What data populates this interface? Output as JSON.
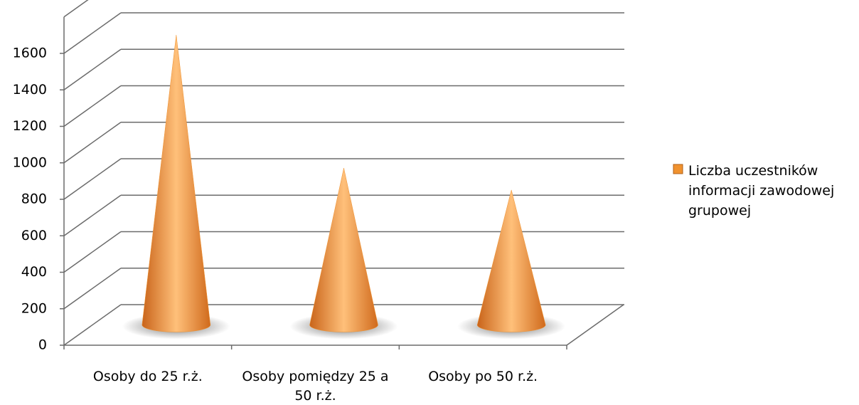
{
  "chart_data": {
    "type": "cone",
    "categories": [
      "Osoby do 25 r.ż.",
      "Osoby pomiędzy 25 a 50 r.ż.",
      "Osoby po 50 r.ż."
    ],
    "series": [
      {
        "name": "Liczba uczestników informacji zawodowej grupowej",
        "color": "#f0922e",
        "values": [
          1590,
          860,
          740
        ]
      }
    ],
    "ylim": [
      0,
      1800
    ],
    "yticks": [
      0,
      200,
      400,
      600,
      800,
      1000,
      1200,
      1400,
      1600
    ],
    "grid": true,
    "legend": "right"
  }
}
